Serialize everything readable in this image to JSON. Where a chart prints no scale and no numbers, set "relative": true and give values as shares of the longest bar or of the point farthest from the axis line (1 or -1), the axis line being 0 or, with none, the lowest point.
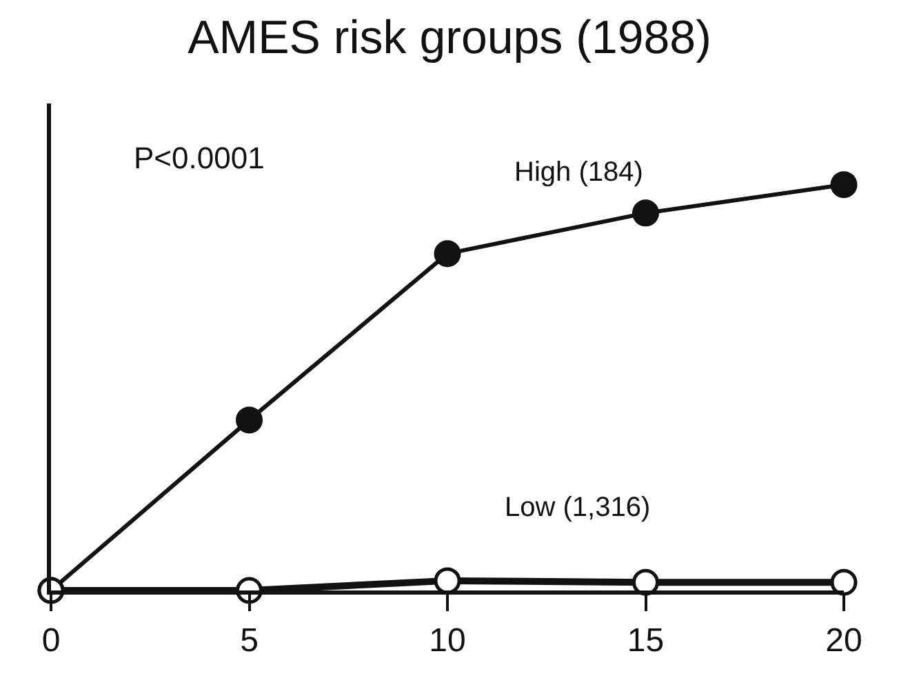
{
  "chart_data": {
    "type": "line",
    "title": "AMES risk groups (1988)",
    "relative": true,
    "x": [
      0,
      5,
      10,
      15,
      20
    ],
    "xlim": [
      0,
      20
    ],
    "xticks": [
      0,
      5,
      10,
      15,
      20
    ],
    "series": [
      {
        "name": "High (184)",
        "color": "#111111",
        "values": [
          0,
          0.42,
          0.83,
          0.93,
          1
        ]
      },
      {
        "name": "Low (1,316)",
        "color": "#111111",
        "values": [
          0,
          0,
          0.024,
          0.02,
          0.02
        ]
      }
    ],
    "annotations": [
      "P<0.0001"
    ],
    "marker": "circle",
    "line_style": "solid",
    "legend": false
  }
}
